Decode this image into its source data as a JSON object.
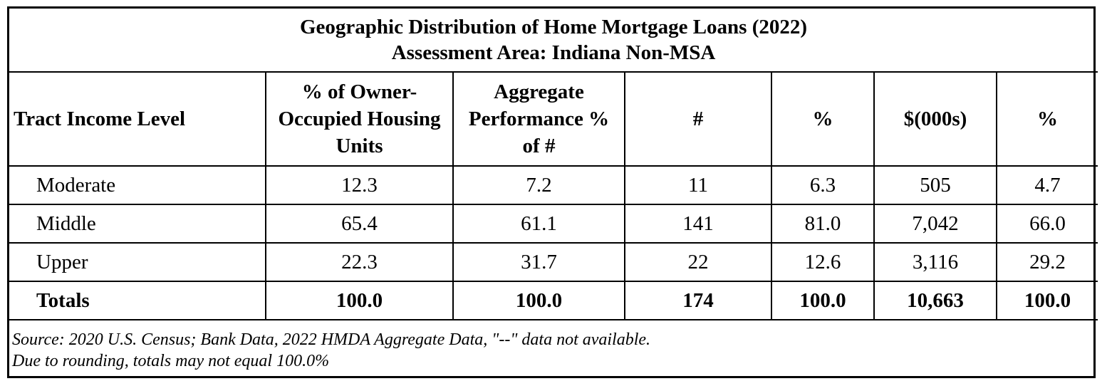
{
  "title": {
    "line1": "Geographic Distribution of Home Mortgage Loans (2022)",
    "line2": "Assessment Area: Indiana Non-MSA"
  },
  "columns": {
    "tract_income_level": "Tract Income Level",
    "owner_occupied": "% of  Owner-Occupied Housing Units",
    "aggregate": "Aggregate Performance % of #",
    "count": "#",
    "count_pct": "%",
    "dollars": "$(000s)",
    "dollars_pct": "%"
  },
  "rows": [
    {
      "level": "Moderate",
      "owner_occupied": "12.3",
      "aggregate": "7.2",
      "count": "11",
      "count_pct": "6.3",
      "dollars": "505",
      "dollars_pct": "4.7"
    },
    {
      "level": "Middle",
      "owner_occupied": "65.4",
      "aggregate": "61.1",
      "count": "141",
      "count_pct": "81.0",
      "dollars": "7,042",
      "dollars_pct": "66.0"
    },
    {
      "level": "Upper",
      "owner_occupied": "22.3",
      "aggregate": "31.7",
      "count": "22",
      "count_pct": "12.6",
      "dollars": "3,116",
      "dollars_pct": "29.2"
    }
  ],
  "totals": {
    "level": "Totals",
    "owner_occupied": "100.0",
    "aggregate": "100.0",
    "count": "174",
    "count_pct": "100.0",
    "dollars": "10,663",
    "dollars_pct": "100.0"
  },
  "notes": {
    "line1": "Source: 2020 U.S. Census; Bank Data, 2022 HMDA Aggregate Data, \"--\" data not available.",
    "line2": "Due to rounding, totals may not equal 100.0%"
  }
}
